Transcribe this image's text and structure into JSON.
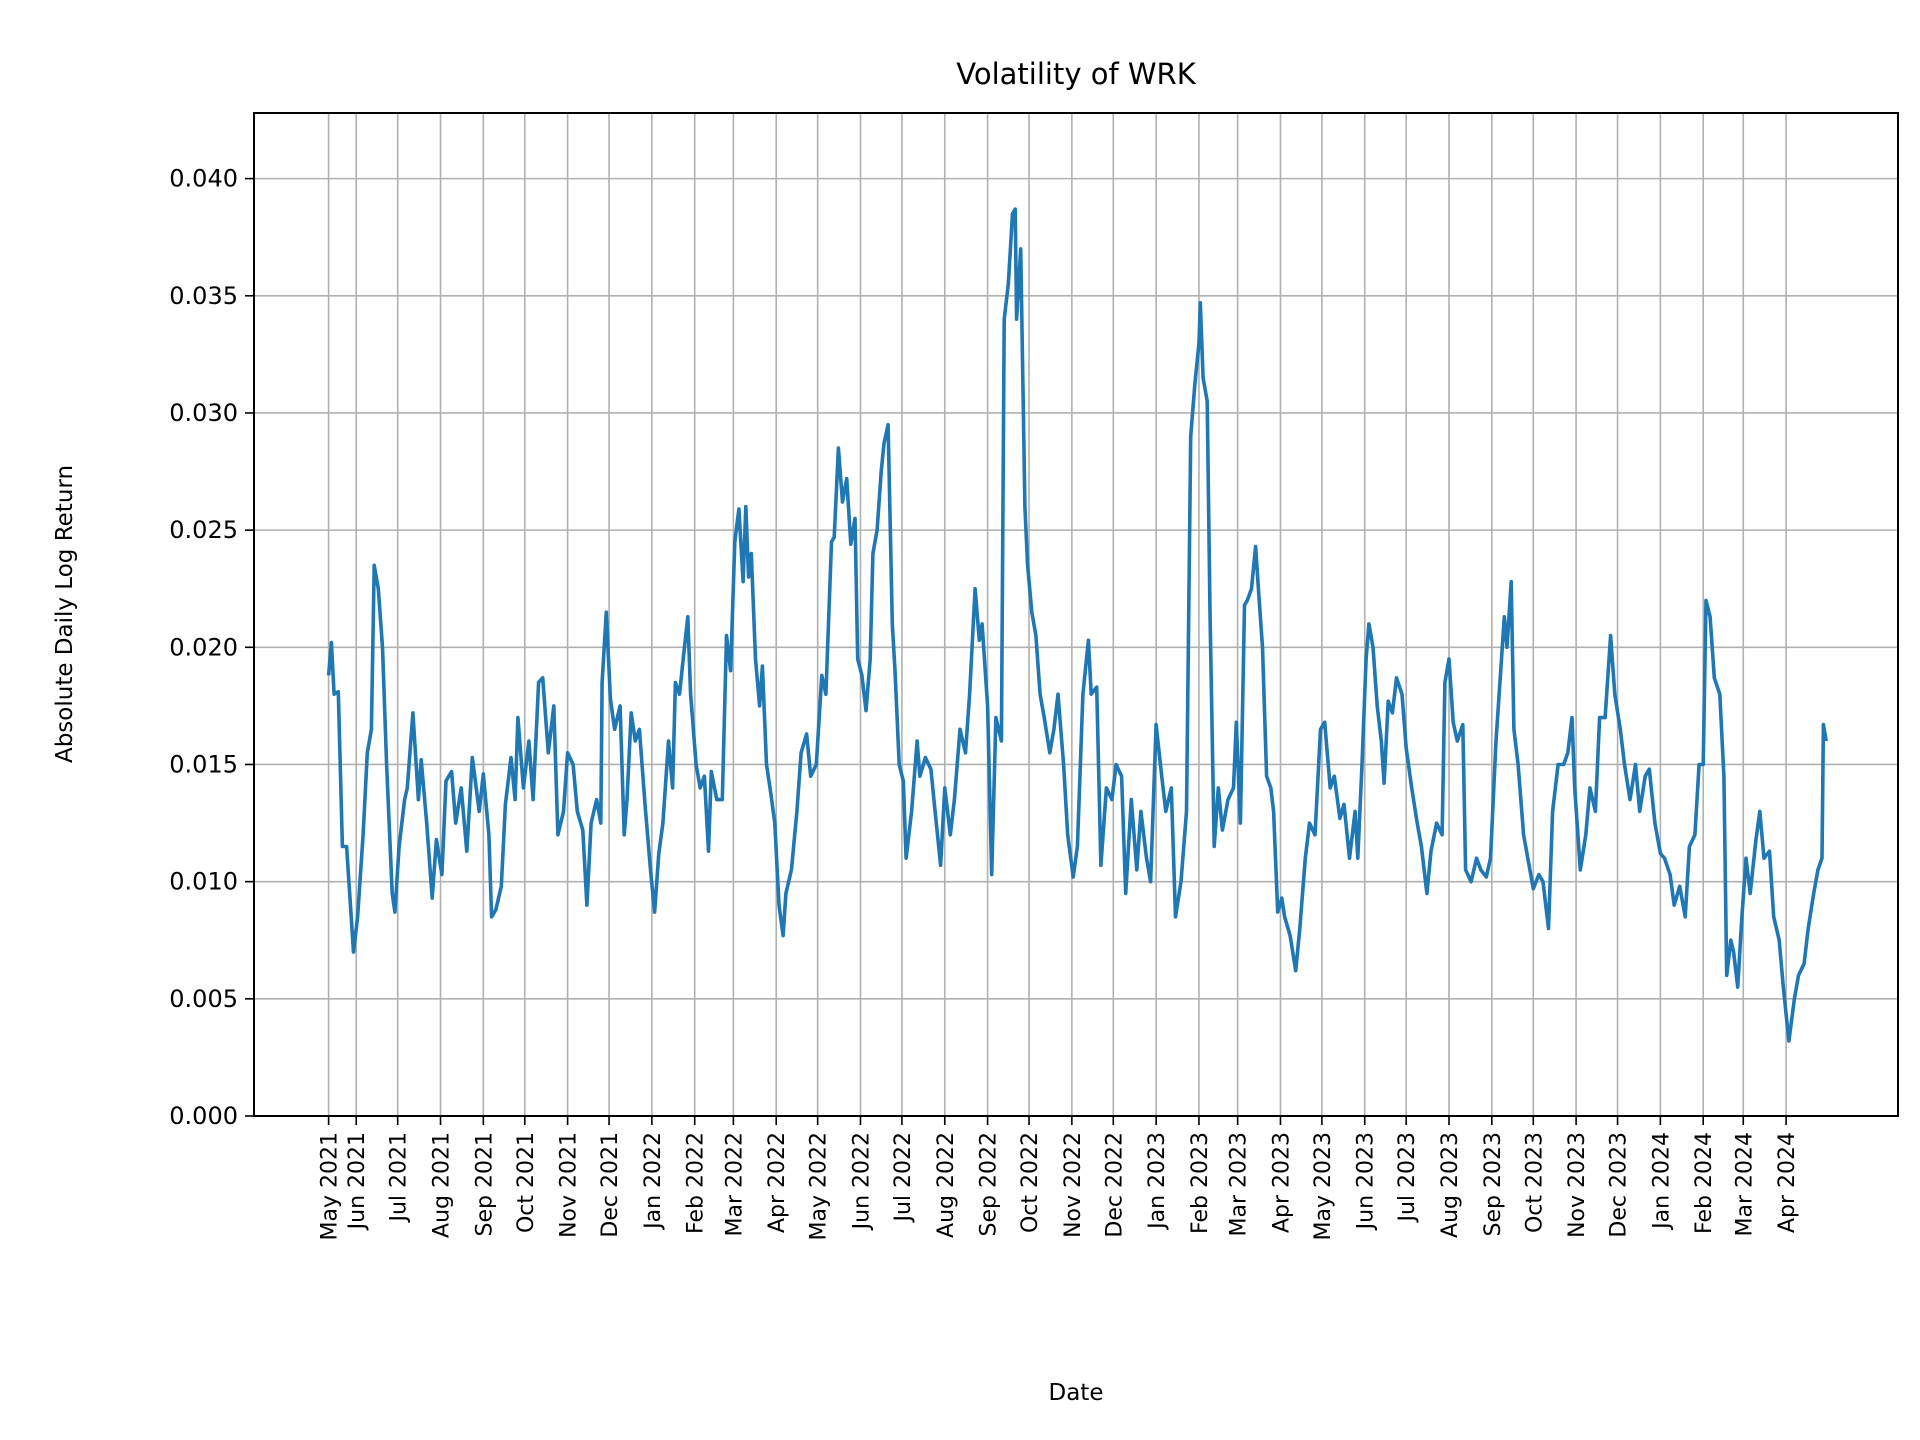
{
  "chart_data": {
    "type": "line",
    "title": "Volatility of WRK",
    "xlabel": "Date",
    "ylabel": "Absolute Daily Log Return",
    "xlim": [
      "2021-03-19",
      "2024-06-21"
    ],
    "ylim": [
      0,
      0.0428
    ],
    "grid": true,
    "line_color": "#1f77b4",
    "grid_color": "#b0b0b0",
    "yticks": [
      0,
      0.005,
      0.01,
      0.015,
      0.02,
      0.025,
      0.03,
      0.035,
      0.04
    ],
    "ytick_labels": [
      "0.000",
      "0.005",
      "0.010",
      "0.015",
      "0.020",
      "0.025",
      "0.030",
      "0.035",
      "0.040"
    ],
    "xticks": [
      "2021-05-12",
      "2021-06-01",
      "2021-07-01",
      "2021-08-01",
      "2021-09-01",
      "2021-10-01",
      "2021-11-01",
      "2021-12-01",
      "2022-01-01",
      "2022-02-01",
      "2022-03-01",
      "2022-04-01",
      "2022-05-01",
      "2022-06-01",
      "2022-07-01",
      "2022-08-01",
      "2022-09-01",
      "2022-10-01",
      "2022-11-01",
      "2022-12-01",
      "2023-01-01",
      "2023-02-01",
      "2023-03-01",
      "2023-04-01",
      "2023-05-01",
      "2023-06-01",
      "2023-07-01",
      "2023-08-01",
      "2023-09-01",
      "2023-10-01",
      "2023-11-01",
      "2023-12-01",
      "2024-01-01",
      "2024-02-01",
      "2024-03-01",
      "2024-04-01"
    ],
    "xtick_labels": [
      "May 2021",
      "Jun 2021",
      "Jul 2021",
      "Aug 2021",
      "Sep 2021",
      "Oct 2021",
      "Nov 2021",
      "Dec 2021",
      "Jan 2022",
      "Feb 2022",
      "Mar 2022",
      "Apr 2022",
      "May 2022",
      "Jun 2022",
      "Jul 2022",
      "Aug 2022",
      "Sep 2022",
      "Oct 2022",
      "Nov 2022",
      "Dec 2022",
      "Jan 2023",
      "Feb 2023",
      "Mar 2023",
      "Apr 2023",
      "May 2023",
      "Jun 2023",
      "Jul 2023",
      "Aug 2023",
      "Sep 2023",
      "Oct 2023",
      "Nov 2023",
      "Dec 2023",
      "Jan 2024",
      "Feb 2024",
      "Mar 2024",
      "Apr 2024"
    ],
    "series": [
      {
        "x": [
          "2021-05-12",
          "2021-05-14",
          "2021-05-16",
          "2021-05-19",
          "2021-05-22",
          "2021-05-25",
          "2021-05-30",
          "2021-06-02",
          "2021-06-06",
          "2021-06-09",
          "2021-06-12",
          "2021-06-14",
          "2021-06-17",
          "2021-06-20",
          "2021-06-23",
          "2021-06-27",
          "2021-06-29",
          "2021-07-02",
          "2021-07-06",
          "2021-07-08",
          "2021-07-12",
          "2021-07-16",
          "2021-07-18",
          "2021-07-22",
          "2021-07-26",
          "2021-07-29",
          "2021-08-02",
          "2021-08-05",
          "2021-08-09",
          "2021-08-12",
          "2021-08-16",
          "2021-08-20",
          "2021-08-24",
          "2021-08-29",
          "2021-09-01",
          "2021-09-05",
          "2021-09-07",
          "2021-09-10",
          "2021-09-14",
          "2021-09-17",
          "2021-09-21",
          "2021-09-24",
          "2021-09-26",
          "2021-09-30",
          "2021-10-04",
          "2021-10-07",
          "2021-10-11",
          "2021-10-14",
          "2021-10-18",
          "2021-10-22",
          "2021-10-25",
          "2021-10-29",
          "2021-11-01",
          "2021-11-05",
          "2021-11-08",
          "2021-11-12",
          "2021-11-15",
          "2021-11-18",
          "2021-11-22",
          "2021-11-25",
          "2021-11-26",
          "2021-11-29",
          "2021-12-02",
          "2021-12-05",
          "2021-12-09",
          "2021-12-12",
          "2021-12-14",
          "2021-12-17",
          "2021-12-20",
          "2021-12-23",
          "2021-12-27",
          "2021-12-31",
          "2022-01-03",
          "2022-01-06",
          "2022-01-09",
          "2022-01-13",
          "2022-01-16",
          "2022-01-18",
          "2022-01-21",
          "2022-01-24",
          "2022-01-27",
          "2022-01-29",
          "2022-02-02",
          "2022-02-05",
          "2022-02-08",
          "2022-02-11",
          "2022-02-13",
          "2022-02-17",
          "2022-02-21",
          "2022-02-24",
          "2022-02-27",
          "2022-03-02",
          "2022-03-05",
          "2022-03-08",
          "2022-03-10",
          "2022-03-12",
          "2022-03-14",
          "2022-03-17",
          "2022-03-20",
          "2022-03-22",
          "2022-03-25",
          "2022-03-28",
          "2022-03-31",
          "2022-04-03",
          "2022-04-06",
          "2022-04-08",
          "2022-04-12",
          "2022-04-16",
          "2022-04-19",
          "2022-04-23",
          "2022-04-26",
          "2022-04-30",
          "2022-05-04",
          "2022-05-07",
          "2022-05-11",
          "2022-05-13",
          "2022-05-16",
          "2022-05-19",
          "2022-05-22",
          "2022-05-25",
          "2022-05-28",
          "2022-05-30",
          "2022-06-02",
          "2022-06-05",
          "2022-06-08",
          "2022-06-10",
          "2022-06-13",
          "2022-06-16",
          "2022-06-18",
          "2022-06-21",
          "2022-06-24",
          "2022-06-26",
          "2022-06-29",
          "2022-07-02",
          "2022-07-04",
          "2022-07-08",
          "2022-07-12",
          "2022-07-14",
          "2022-07-18",
          "2022-07-22",
          "2022-07-25",
          "2022-07-29",
          "2022-08-01",
          "2022-08-05",
          "2022-08-08",
          "2022-08-12",
          "2022-08-16",
          "2022-08-19",
          "2022-08-23",
          "2022-08-26",
          "2022-08-28",
          "2022-09-01",
          "2022-09-04",
          "2022-09-07",
          "2022-09-11",
          "2022-09-13",
          "2022-09-16",
          "2022-09-19",
          "2022-09-21",
          "2022-09-22",
          "2022-09-25",
          "2022-09-28",
          "2022-09-30",
          "2022-10-03",
          "2022-10-06",
          "2022-10-09",
          "2022-10-12",
          "2022-10-16",
          "2022-10-19",
          "2022-10-22",
          "2022-10-26",
          "2022-10-29",
          "2022-11-02",
          "2022-11-05",
          "2022-11-09",
          "2022-11-13",
          "2022-11-15",
          "2022-11-19",
          "2022-11-22",
          "2022-11-26",
          "2022-11-30",
          "2022-12-03",
          "2022-12-07",
          "2022-12-10",
          "2022-12-14",
          "2022-12-18",
          "2022-12-21",
          "2022-12-25",
          "2022-12-28",
          "2023-01-01",
          "2023-01-05",
          "2023-01-08",
          "2023-01-12",
          "2023-01-15",
          "2023-01-19",
          "2023-01-23",
          "2023-01-26",
          "2023-01-29",
          "2023-02-01",
          "2023-02-02",
          "2023-02-04",
          "2023-02-07",
          "2023-02-09",
          "2023-02-12",
          "2023-02-15",
          "2023-02-18",
          "2023-02-22",
          "2023-02-26",
          "2023-02-28",
          "2023-03-03",
          "2023-03-06",
          "2023-03-08",
          "2023-03-11",
          "2023-03-14",
          "2023-03-16",
          "2023-03-19",
          "2023-03-22",
          "2023-03-25",
          "2023-03-27",
          "2023-03-30",
          "2023-04-02",
          "2023-04-04",
          "2023-04-08",
          "2023-04-12",
          "2023-04-15",
          "2023-04-19",
          "2023-04-22",
          "2023-04-26",
          "2023-04-30",
          "2023-05-03",
          "2023-05-07",
          "2023-05-10",
          "2023-05-14",
          "2023-05-17",
          "2023-05-21",
          "2023-05-25",
          "2023-05-27",
          "2023-05-30",
          "2023-06-02",
          "2023-06-04",
          "2023-06-07",
          "2023-06-10",
          "2023-06-13",
          "2023-06-15",
          "2023-06-18",
          "2023-06-21",
          "2023-06-24",
          "2023-06-28",
          "2023-07-01",
          "2023-07-05",
          "2023-07-09",
          "2023-07-12",
          "2023-07-16",
          "2023-07-19",
          "2023-07-23",
          "2023-07-27",
          "2023-07-29",
          "2023-08-01",
          "2023-08-04",
          "2023-08-07",
          "2023-08-11",
          "2023-08-13",
          "2023-08-17",
          "2023-08-21",
          "2023-08-24",
          "2023-08-28",
          "2023-08-31",
          "2023-09-04",
          "2023-09-08",
          "2023-09-10",
          "2023-09-12",
          "2023-09-15",
          "2023-09-17",
          "2023-09-20",
          "2023-09-24",
          "2023-09-27",
          "2023-10-01",
          "2023-10-05",
          "2023-10-08",
          "2023-10-12",
          "2023-10-15",
          "2023-10-19",
          "2023-10-23",
          "2023-10-26",
          "2023-10-29",
          "2023-10-31",
          "2023-11-04",
          "2023-11-08",
          "2023-11-11",
          "2023-11-15",
          "2023-11-18",
          "2023-11-22",
          "2023-11-26",
          "2023-11-29",
          "2023-12-03",
          "2023-12-06",
          "2023-12-10",
          "2023-12-14",
          "2023-12-17",
          "2023-12-21",
          "2023-12-24",
          "2023-12-28",
          "2024-01-01",
          "2024-01-04",
          "2024-01-08",
          "2024-01-11",
          "2024-01-15",
          "2024-01-19",
          "2024-01-22",
          "2024-01-26",
          "2024-01-29",
          "2024-02-01",
          "2024-02-03",
          "2024-02-06",
          "2024-02-09",
          "2024-02-13",
          "2024-02-16",
          "2024-02-18",
          "2024-02-21",
          "2024-02-23",
          "2024-02-26",
          "2024-02-29",
          "2024-03-03",
          "2024-03-06",
          "2024-03-10",
          "2024-03-13",
          "2024-03-16",
          "2024-03-20",
          "2024-03-23",
          "2024-03-27",
          "2024-03-30",
          "2024-04-03",
          "2024-04-07",
          "2024-04-10",
          "2024-04-14",
          "2024-04-17",
          "2024-04-21",
          "2024-04-24",
          "2024-04-27",
          "2024-04-28",
          "2024-04-30"
        ],
        "y": [
          0.0188,
          0.0202,
          0.018,
          0.0181,
          0.0115,
          0.0115,
          0.007,
          0.0085,
          0.012,
          0.0155,
          0.0165,
          0.0235,
          0.0225,
          0.02,
          0.015,
          0.0095,
          0.0087,
          0.0115,
          0.0135,
          0.014,
          0.0172,
          0.0135,
          0.0152,
          0.0125,
          0.0093,
          0.0118,
          0.0103,
          0.0143,
          0.0147,
          0.0125,
          0.014,
          0.0113,
          0.0153,
          0.013,
          0.0146,
          0.012,
          0.0085,
          0.0088,
          0.0098,
          0.0133,
          0.0153,
          0.0135,
          0.017,
          0.014,
          0.016,
          0.0135,
          0.0185,
          0.0187,
          0.0155,
          0.0175,
          0.012,
          0.013,
          0.0155,
          0.015,
          0.013,
          0.0122,
          0.009,
          0.0125,
          0.0135,
          0.0125,
          0.0185,
          0.0215,
          0.0178,
          0.0165,
          0.0175,
          0.012,
          0.0135,
          0.0172,
          0.016,
          0.0165,
          0.0133,
          0.0105,
          0.0087,
          0.0112,
          0.0125,
          0.016,
          0.014,
          0.0185,
          0.018,
          0.0197,
          0.0213,
          0.018,
          0.015,
          0.014,
          0.0145,
          0.0113,
          0.0147,
          0.0135,
          0.0135,
          0.0205,
          0.019,
          0.0245,
          0.0259,
          0.0228,
          0.026,
          0.023,
          0.024,
          0.0195,
          0.0175,
          0.0192,
          0.015,
          0.0138,
          0.0125,
          0.009,
          0.0077,
          0.0095,
          0.0105,
          0.013,
          0.0155,
          0.0163,
          0.0145,
          0.015,
          0.0188,
          0.018,
          0.0245,
          0.0247,
          0.0285,
          0.0262,
          0.0272,
          0.0244,
          0.0255,
          0.0195,
          0.0188,
          0.0173,
          0.0195,
          0.024,
          0.025,
          0.0275,
          0.0287,
          0.0295,
          0.021,
          0.019,
          0.015,
          0.0143,
          0.011,
          0.013,
          0.016,
          0.0145,
          0.0153,
          0.0148,
          0.013,
          0.0107,
          0.014,
          0.012,
          0.0135,
          0.0165,
          0.0155,
          0.018,
          0.0225,
          0.0203,
          0.021,
          0.0175,
          0.0103,
          0.017,
          0.016,
          0.034,
          0.0355,
          0.0385,
          0.0387,
          0.034,
          0.037,
          0.026,
          0.0235,
          0.0215,
          0.0205,
          0.018,
          0.017,
          0.0155,
          0.0165,
          0.018,
          0.015,
          0.012,
          0.0102,
          0.0115,
          0.018,
          0.0203,
          0.018,
          0.0183,
          0.0107,
          0.014,
          0.0135,
          0.015,
          0.0145,
          0.0095,
          0.0135,
          0.0105,
          0.013,
          0.011,
          0.01,
          0.0167,
          0.0145,
          0.013,
          0.014,
          0.0085,
          0.01,
          0.013,
          0.029,
          0.0312,
          0.033,
          0.0347,
          0.0315,
          0.0305,
          0.0215,
          0.0115,
          0.014,
          0.0122,
          0.0135,
          0.014,
          0.0168,
          0.0125,
          0.0218,
          0.022,
          0.0225,
          0.0243,
          0.0225,
          0.02,
          0.0145,
          0.014,
          0.013,
          0.0087,
          0.0093,
          0.0085,
          0.0077,
          0.0062,
          0.008,
          0.011,
          0.0125,
          0.012,
          0.0165,
          0.0168,
          0.014,
          0.0145,
          0.0127,
          0.0133,
          0.011,
          0.013,
          0.011,
          0.015,
          0.0195,
          0.021,
          0.02,
          0.0175,
          0.016,
          0.0142,
          0.0177,
          0.0172,
          0.0187,
          0.018,
          0.0157,
          0.014,
          0.0125,
          0.0115,
          0.0095,
          0.0113,
          0.0125,
          0.012,
          0.0185,
          0.0195,
          0.0168,
          0.016,
          0.0167,
          0.0105,
          0.01,
          0.011,
          0.0105,
          0.0102,
          0.011,
          0.016,
          0.0195,
          0.0213,
          0.02,
          0.0228,
          0.0165,
          0.015,
          0.012,
          0.011,
          0.0097,
          0.0103,
          0.01,
          0.008,
          0.013,
          0.015,
          0.015,
          0.0155,
          0.017,
          0.014,
          0.0105,
          0.012,
          0.014,
          0.013,
          0.017,
          0.017,
          0.0205,
          0.018,
          0.0165,
          0.015,
          0.0135,
          0.015,
          0.013,
          0.0145,
          0.0148,
          0.0125,
          0.0112,
          0.011,
          0.0103,
          0.009,
          0.0098,
          0.0085,
          0.0115,
          0.012,
          0.015,
          0.015,
          0.022,
          0.0213,
          0.0187,
          0.018,
          0.0145,
          0.006,
          0.0075,
          0.007,
          0.0055,
          0.0085,
          0.011,
          0.0095,
          0.0117,
          0.013,
          0.011,
          0.0113,
          0.0085,
          0.0075,
          0.0055,
          0.0032,
          0.005,
          0.006,
          0.0065,
          0.008,
          0.0095,
          0.0105,
          0.011,
          0.0167,
          0.016
        ]
      }
    ]
  }
}
